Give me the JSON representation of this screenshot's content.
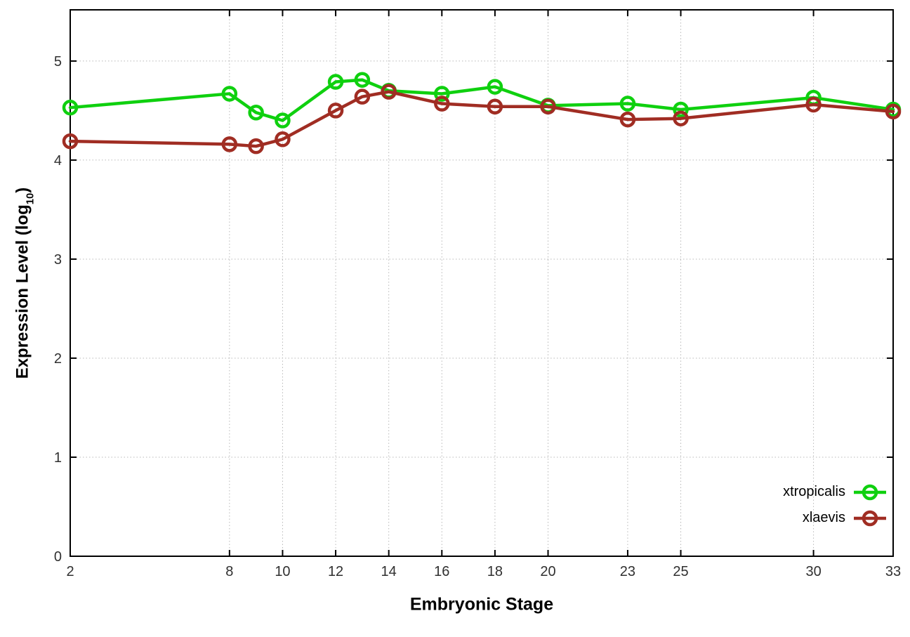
{
  "chart_data": {
    "type": "line",
    "title": "",
    "xlabel": "Embryonic Stage",
    "ylabel": {
      "prefix": "Expression Level (log",
      "sub": "10",
      "suffix": ")"
    },
    "x": [
      2,
      8,
      9,
      10,
      12,
      13,
      14,
      16,
      18,
      20,
      23,
      25,
      30,
      33
    ],
    "series": [
      {
        "name": "xtropicalis",
        "color": "#0fd00f",
        "values": [
          4.53,
          4.67,
          4.48,
          4.4,
          4.79,
          4.81,
          4.7,
          4.67,
          4.74,
          4.55,
          4.57,
          4.51,
          4.63,
          4.51
        ]
      },
      {
        "name": "xlaevis",
        "color": "#a02d23",
        "values": [
          4.19,
          4.16,
          4.14,
          4.21,
          4.5,
          4.64,
          4.69,
          4.57,
          4.54,
          4.54,
          4.41,
          4.42,
          4.56,
          4.49
        ]
      }
    ],
    "x_ticks": [
      2,
      8,
      10,
      12,
      14,
      16,
      18,
      20,
      23,
      25,
      30,
      33
    ],
    "y_ticks": [
      0,
      1,
      2,
      3,
      4,
      5
    ],
    "xlim": [
      2,
      33
    ],
    "ylim": [
      0,
      5.517
    ],
    "grid": true,
    "legend_position": "inside-bottom-right",
    "colors": {
      "background": "#ffffff",
      "axis": "#000000",
      "grid": "#b8b8b8",
      "tick_label": "#303030"
    }
  }
}
